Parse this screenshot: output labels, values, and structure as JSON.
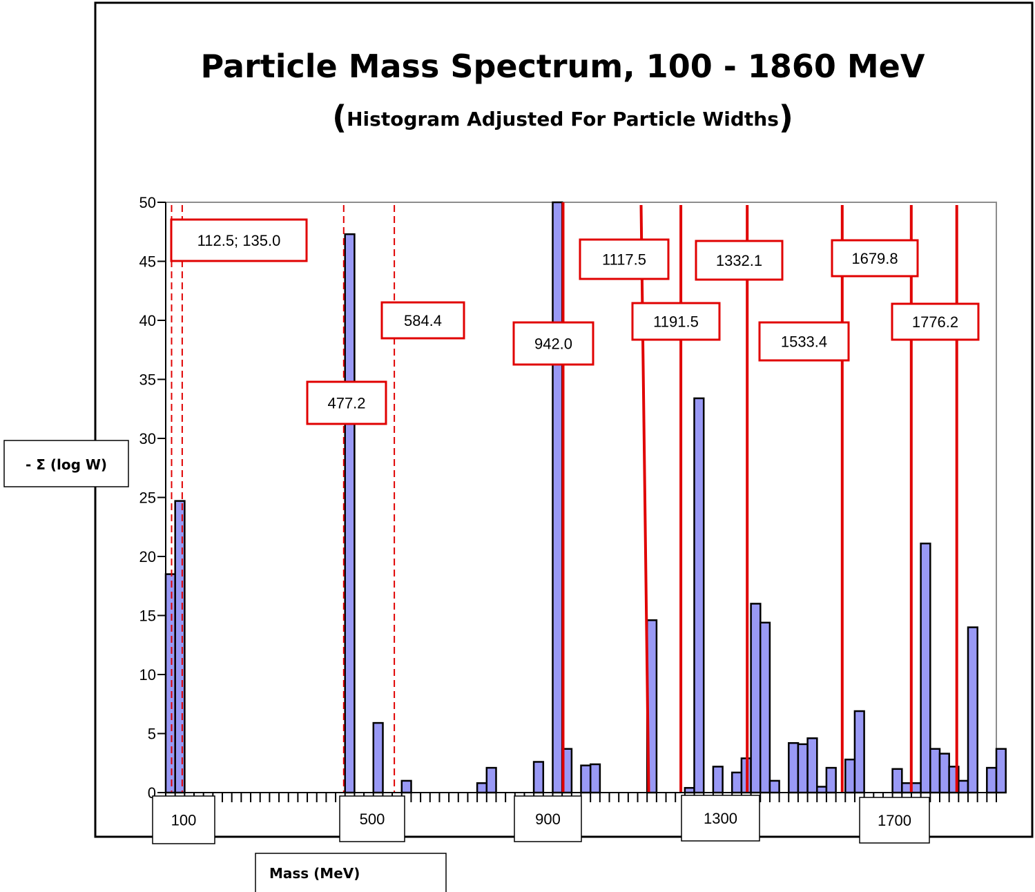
{
  "chart_data": {
    "type": "bar",
    "title": "Particle Mass Spectrum, 100 - 1860 MeV",
    "subtitle_open": "(",
    "subtitle": "Histogram Adjusted For Particle Widths",
    "subtitle_close": ")",
    "xlabel": "Mass  (MeV)",
    "ylabel": "- Σ (log W)",
    "ylim": [
      0,
      50
    ],
    "yticks": [
      "0",
      "5",
      "10",
      "15",
      "20",
      "25",
      "30",
      "35",
      "40",
      "45",
      "50"
    ],
    "xticks": [
      {
        "value": 100,
        "label": "100"
      },
      {
        "value": 500,
        "label": "500"
      },
      {
        "value": 900,
        "label": "900"
      },
      {
        "value": 1300,
        "label": "1300"
      },
      {
        "value": 1700,
        "label": "1700"
      }
    ],
    "xlim": [
      100,
      1860
    ],
    "bin_width": 20,
    "bars": [
      {
        "x": 120,
        "y": 18.5
      },
      {
        "x": 140,
        "y": 24.7
      },
      {
        "x": 500,
        "y": 47.3
      },
      {
        "x": 560,
        "y": 5.9
      },
      {
        "x": 620,
        "y": 1.0
      },
      {
        "x": 780,
        "y": 0.8
      },
      {
        "x": 800,
        "y": 2.1
      },
      {
        "x": 900,
        "y": 2.6
      },
      {
        "x": 940,
        "y": 50
      },
      {
        "x": 960,
        "y": 3.7
      },
      {
        "x": 1000,
        "y": 2.3
      },
      {
        "x": 1020,
        "y": 2.4
      },
      {
        "x": 1140,
        "y": 14.6
      },
      {
        "x": 1220,
        "y": 0.4
      },
      {
        "x": 1240,
        "y": 33.4
      },
      {
        "x": 1280,
        "y": 2.2
      },
      {
        "x": 1320,
        "y": 1.7
      },
      {
        "x": 1340,
        "y": 2.9
      },
      {
        "x": 1360,
        "y": 16.0
      },
      {
        "x": 1380,
        "y": 14.4
      },
      {
        "x": 1400,
        "y": 1.0
      },
      {
        "x": 1440,
        "y": 4.2
      },
      {
        "x": 1460,
        "y": 4.1
      },
      {
        "x": 1480,
        "y": 4.6
      },
      {
        "x": 1500,
        "y": 0.5
      },
      {
        "x": 1520,
        "y": 2.1
      },
      {
        "x": 1560,
        "y": 2.8
      },
      {
        "x": 1580,
        "y": 6.9
      },
      {
        "x": 1660,
        "y": 2.0
      },
      {
        "x": 1680,
        "y": 0.8
      },
      {
        "x": 1700,
        "y": 0.8
      },
      {
        "x": 1720,
        "y": 21.1
      },
      {
        "x": 1740,
        "y": 3.7
      },
      {
        "x": 1760,
        "y": 3.3
      },
      {
        "x": 1780,
        "y": 2.2
      },
      {
        "x": 1800,
        "y": 1.0
      },
      {
        "x": 1820,
        "y": 14.0
      },
      {
        "x": 1860,
        "y": 2.1
      },
      {
        "x": 1880,
        "y": 3.7
      }
    ],
    "reference_lines": [
      {
        "mass": 112.5,
        "style": "dashed"
      },
      {
        "mass": 135.0,
        "style": "dashed"
      },
      {
        "mass": 477.2,
        "style": "dashed"
      },
      {
        "mass": 584.4,
        "style": "dashed"
      },
      {
        "mass": 942.0,
        "style": "solid"
      },
      {
        "mass": 1117.5,
        "style": "solid"
      },
      {
        "mass": 1191.5,
        "style": "solid"
      },
      {
        "mass": 1332.1,
        "style": "solid"
      },
      {
        "mass": 1533.4,
        "style": "solid"
      },
      {
        "mass": 1679.8,
        "style": "solid"
      },
      {
        "mass": 1776.2,
        "style": "solid"
      }
    ],
    "annotations": [
      {
        "text": "112.5; 135.0"
      },
      {
        "text": "477.2"
      },
      {
        "text": "584.4"
      },
      {
        "text": "942.0"
      },
      {
        "text": "1117.5"
      },
      {
        "text": "1191.5"
      },
      {
        "text": "1332.1"
      },
      {
        "text": "1533.4"
      },
      {
        "text": "1679.8"
      },
      {
        "text": "1776.2"
      }
    ],
    "grid": false,
    "legend": "none"
  },
  "colors": {
    "bar_fill": "#9999f5",
    "reference_line": "#e00000",
    "annotation_border": "#e00000"
  }
}
